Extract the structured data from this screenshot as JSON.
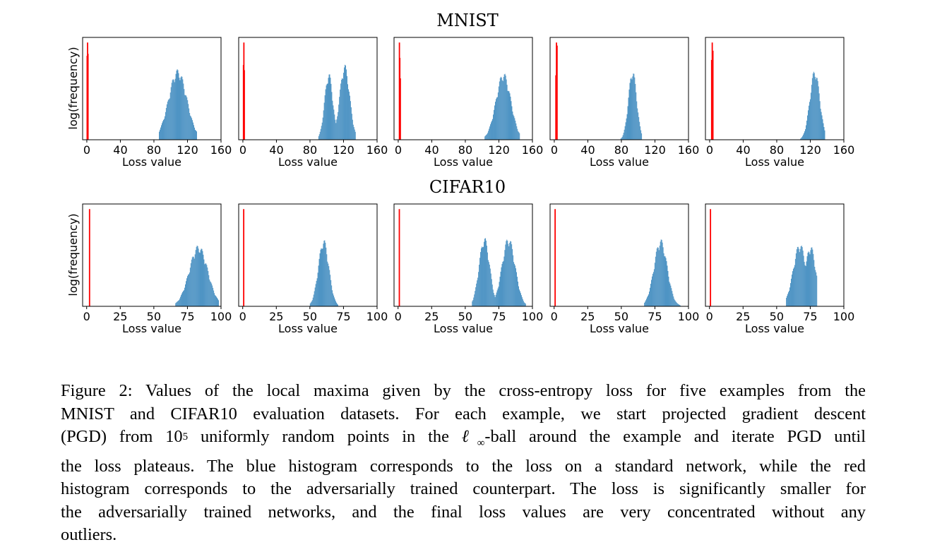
{
  "figure": {
    "rows": [
      {
        "title": "MNIST",
        "ylabel": "log(frequency)",
        "xlabel": "Loss value"
      },
      {
        "title": "CIFAR10",
        "ylabel": "log(frequency)",
        "xlabel": "Loss value"
      }
    ]
  },
  "caption": {
    "line1": "Figure 2: Values of the local maxima given by the cross-entropy loss for five examples from the",
    "line2": "MNIST and CIFAR10 evaluation datasets. For each example, we start projected gradient descent",
    "line3_a": "(PGD) from 10",
    "line3_sup": "5",
    "line3_b": " uniformly random points in the ",
    "line3_ell": "ℓ",
    "line3_inf": "∞",
    "line3_c": "-ball around the example and iterate PGD until",
    "line4": "the loss plateaus. The blue histogram corresponds to the loss on a standard network, while the red",
    "line5": "histogram corresponds to the adversarially trained counterpart. The loss is significantly smaller for",
    "line6": "the adversarially trained networks, and the final loss values are very concentrated without any",
    "line7": "outliers."
  },
  "chart_data": [
    {
      "type": "bar",
      "dataset": "MNIST",
      "example": 1,
      "xlabel": "Loss value",
      "ylabel": "log(frequency)",
      "xticks": [
        0,
        40,
        80,
        120,
        160
      ],
      "xlim": [
        -5,
        160
      ],
      "series": [
        {
          "name": "",
          "color": "#ff0000",
          "values": [
            [
              0.5,
              0.82
            ],
            [
              1.0,
              0.95
            ],
            [
              1.5,
              0.84
            ]
          ]
        },
        {
          "name": "",
          "color": "#1f77b4",
          "modes": [
            {
              "center": 108,
              "width": 11,
              "peak": 0.69
            }
          ],
          "range": [
            86,
            131
          ]
        }
      ]
    },
    {
      "type": "bar",
      "dataset": "MNIST",
      "example": 2,
      "xlabel": "Loss value",
      "ylabel": "log(frequency)",
      "xticks": [
        0,
        40,
        80,
        120,
        160
      ],
      "xlim": [
        -5,
        160
      ],
      "series": [
        {
          "name": "",
          "color": "#ff0000",
          "values": [
            [
              0.8,
              0.73
            ],
            [
              1.3,
              0.95
            ],
            [
              1.8,
              0.68
            ]
          ]
        },
        {
          "name": "",
          "color": "#1f77b4",
          "modes": [
            {
              "center": 102,
              "width": 5,
              "peak": 0.66
            },
            {
              "center": 121,
              "width": 6,
              "peak": 0.74
            }
          ],
          "range": [
            90,
            134
          ]
        }
      ]
    },
    {
      "type": "bar",
      "dataset": "MNIST",
      "example": 3,
      "xlabel": "Loss value",
      "ylabel": "log(frequency)",
      "xticks": [
        0,
        40,
        80,
        120,
        160
      ],
      "xlim": [
        -5,
        160
      ],
      "series": [
        {
          "name": "",
          "color": "#ff0000",
          "values": [
            [
              1.5,
              0.95
            ],
            [
              2.0,
              0.8
            ],
            [
              2.6,
              0.6
            ]
          ]
        },
        {
          "name": "",
          "color": "#1f77b4",
          "modes": [
            {
              "center": 125,
              "width": 9,
              "peak": 0.66
            }
          ],
          "range": [
            103,
            145
          ]
        }
      ]
    },
    {
      "type": "bar",
      "dataset": "MNIST",
      "example": 4,
      "xlabel": "Loss value",
      "ylabel": "log(frequency)",
      "xticks": [
        0,
        40,
        80,
        120,
        160
      ],
      "xlim": [
        -5,
        160
      ],
      "series": [
        {
          "name": "",
          "color": "#ff0000",
          "values": [
            [
              2.0,
              0.63
            ],
            [
              2.7,
              0.95
            ],
            [
              3.4,
              0.92
            ]
          ]
        },
        {
          "name": "",
          "color": "#1f77b4",
          "modes": [
            {
              "center": 93,
              "width": 5,
              "peak": 0.69
            }
          ],
          "range": [
            79,
            104
          ]
        }
      ]
    },
    {
      "type": "bar",
      "dataset": "MNIST",
      "example": 5,
      "xlabel": "Loss value",
      "ylabel": "log(frequency)",
      "xticks": [
        0,
        40,
        80,
        120,
        160
      ],
      "xlim": [
        -5,
        160
      ],
      "series": [
        {
          "name": "",
          "color": "#ff0000",
          "values": [
            [
              2.5,
              0.78
            ],
            [
              3.2,
              0.95
            ],
            [
              4.0,
              0.87
            ]
          ]
        },
        {
          "name": "",
          "color": "#1f77b4",
          "modes": [
            {
              "center": 125,
              "width": 6,
              "peak": 0.69
            }
          ],
          "range": [
            108,
            137
          ]
        }
      ]
    },
    {
      "type": "bar",
      "dataset": "CIFAR10",
      "example": 1,
      "xlabel": "Loss value",
      "ylabel": "log(frequency)",
      "xticks": [
        0,
        25,
        50,
        75,
        100
      ],
      "xlim": [
        -3,
        100
      ],
      "series": [
        {
          "name": "",
          "color": "#ff0000",
          "values": [
            [
              2.2,
              0.95
            ]
          ]
        },
        {
          "name": "",
          "color": "#1f77b4",
          "modes": [
            {
              "center": 83,
              "width": 7,
              "peak": 0.6
            }
          ],
          "range": [
            66,
            98
          ]
        }
      ]
    },
    {
      "type": "bar",
      "dataset": "CIFAR10",
      "example": 2,
      "xlabel": "Loss value",
      "ylabel": "log(frequency)",
      "xticks": [
        0,
        25,
        50,
        75,
        100
      ],
      "xlim": [
        -3,
        100
      ],
      "series": [
        {
          "name": "",
          "color": "#ff0000",
          "values": [
            [
              0.8,
              0.95
            ]
          ]
        },
        {
          "name": "",
          "color": "#1f77b4",
          "modes": [
            {
              "center": 60,
              "width": 4,
              "peak": 0.66
            }
          ],
          "range": [
            50,
            71
          ]
        }
      ]
    },
    {
      "type": "bar",
      "dataset": "CIFAR10",
      "example": 3,
      "xlabel": "Loss value",
      "ylabel": "log(frequency)",
      "xticks": [
        0,
        25,
        50,
        75,
        100
      ],
      "xlim": [
        -3,
        100
      ],
      "series": [
        {
          "name": "",
          "color": "#ff0000",
          "values": [
            [
              1.0,
              0.95
            ]
          ]
        },
        {
          "name": "",
          "color": "#1f77b4",
          "modes": [
            {
              "center": 64,
              "width": 4,
              "peak": 0.68
            },
            {
              "center": 82,
              "width": 5,
              "peak": 0.68
            }
          ],
          "range": [
            55,
            95
          ]
        }
      ]
    },
    {
      "type": "bar",
      "dataset": "CIFAR10",
      "example": 4,
      "xlabel": "Loss value",
      "ylabel": "log(frequency)",
      "xticks": [
        0,
        25,
        50,
        75,
        100
      ],
      "xlim": [
        -3,
        100
      ],
      "series": [
        {
          "name": "",
          "color": "#ff0000",
          "values": [
            [
              0.8,
              0.95
            ]
          ]
        },
        {
          "name": "",
          "color": "#1f77b4",
          "modes": [
            {
              "center": 79,
              "width": 5,
              "peak": 0.66
            }
          ],
          "range": [
            67,
            94
          ]
        }
      ]
    },
    {
      "type": "bar",
      "dataset": "CIFAR10",
      "example": 5,
      "xlabel": "Loss value",
      "ylabel": "log(frequency)",
      "xticks": [
        0,
        25,
        50,
        75,
        100
      ],
      "xlim": [
        -3,
        100
      ],
      "series": [
        {
          "name": "",
          "color": "#ff0000",
          "values": [
            [
              0.8,
              0.95
            ]
          ]
        },
        {
          "name": "",
          "color": "#1f77b4",
          "modes": [
            {
              "center": 67,
              "width": 5,
              "peak": 0.62
            },
            {
              "center": 75,
              "width": 4,
              "peak": 0.6
            }
          ],
          "range": [
            57,
            80
          ]
        }
      ]
    }
  ]
}
